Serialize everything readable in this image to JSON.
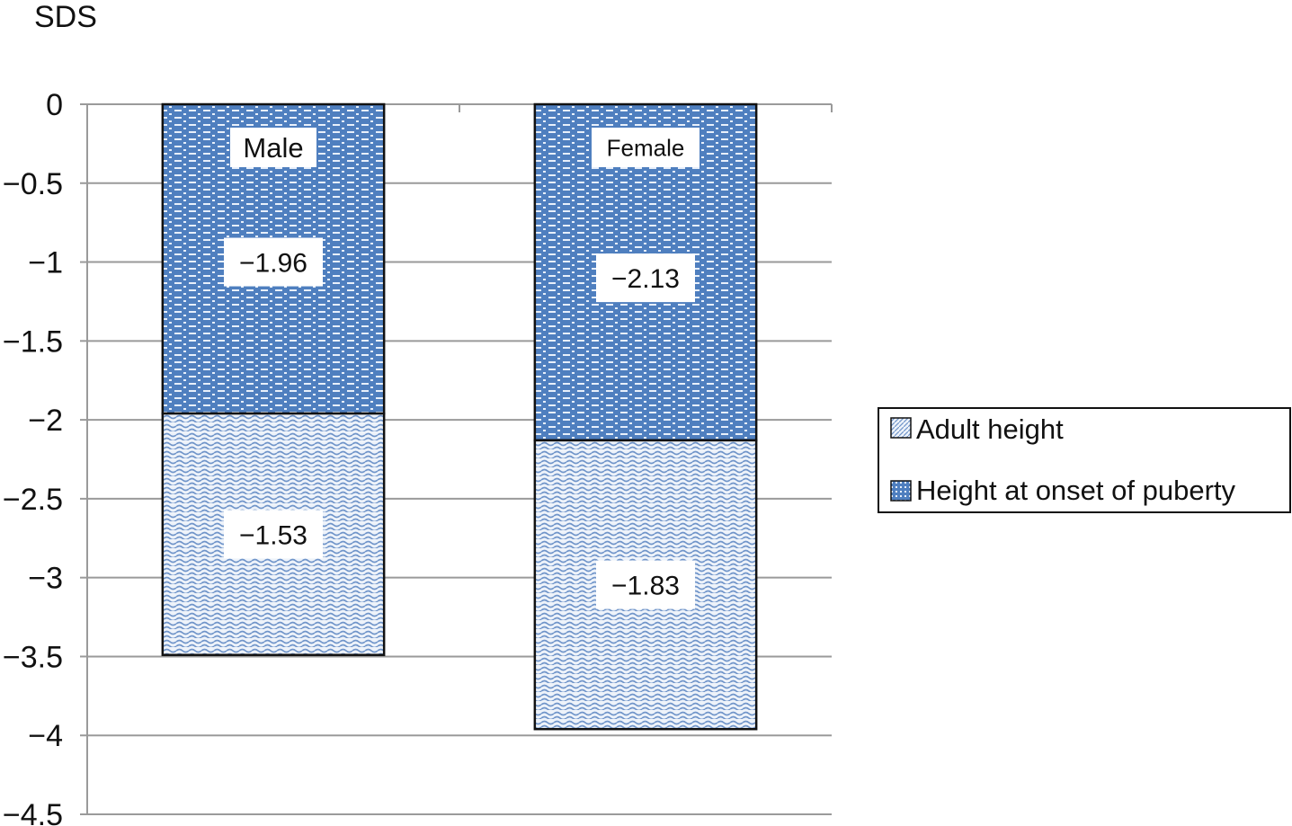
{
  "chart_data": {
    "type": "bar",
    "stacked": true,
    "ylabel": "SDS",
    "ylim": [
      -4.5,
      0
    ],
    "yticks": [
      0,
      -0.5,
      -1,
      -1.5,
      -2,
      -2.5,
      -3,
      -3.5,
      -4,
      -4.5
    ],
    "ytick_labels": [
      "0",
      "−0.5",
      "−1",
      "−1.5",
      "−2",
      "−2.5",
      "−3",
      "−3.5",
      "−4",
      "−4.5"
    ],
    "grid": true,
    "legend": "right",
    "categories": [
      "Male",
      "Female"
    ],
    "series": [
      {
        "name": "Height at onset of puberty",
        "values": [
          -1.96,
          -2.13
        ],
        "labels": [
          "−1.96",
          "−2.13"
        ],
        "color": "#4f7fbf",
        "pattern": "dotted-dash"
      },
      {
        "name": "Adult height",
        "values": [
          -1.53,
          -1.83
        ],
        "labels": [
          "−1.53",
          "−1.83"
        ],
        "color": "#a9c1e4",
        "pattern": "wave"
      }
    ],
    "legend_order": [
      "Adult height",
      "Height at onset of puberty"
    ]
  }
}
